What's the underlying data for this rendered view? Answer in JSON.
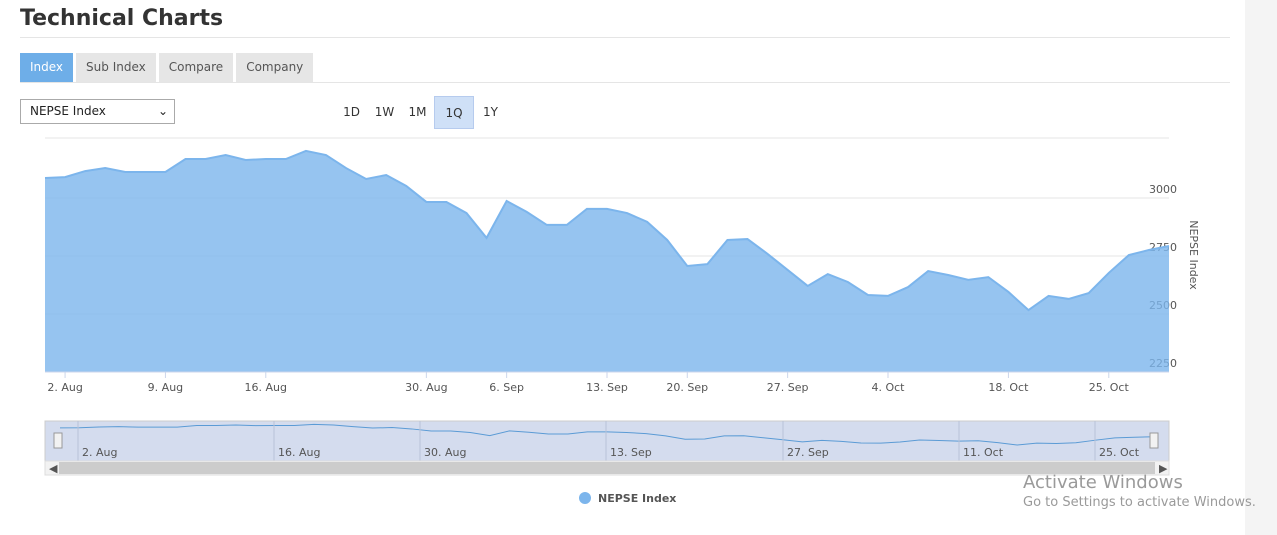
{
  "header": {
    "title": "Technical Charts"
  },
  "tabs": [
    "Index",
    "Sub Index",
    "Compare",
    "Company"
  ],
  "active_tab": 0,
  "select": "NEPSE Index",
  "ranges": [
    "1D",
    "1W",
    "1M",
    "1Q",
    "1Y"
  ],
  "active_range": 3,
  "chart_data": {
    "type": "area",
    "categories": [
      null,
      "2. Aug",
      null,
      null,
      null,
      null,
      "9. Aug",
      null,
      null,
      null,
      null,
      "16. Aug",
      null,
      null,
      null,
      null,
      null,
      null,
      null,
      "30. Aug",
      null,
      null,
      null,
      "6. Sep",
      null,
      null,
      null,
      null,
      "13. Sep",
      null,
      null,
      null,
      "20. Sep",
      null,
      null,
      null,
      null,
      "27. Sep",
      null,
      null,
      null,
      null,
      "4. Oct",
      null,
      null,
      null,
      null,
      null,
      "18. Oct",
      null,
      null,
      null,
      null,
      "25. Oct",
      null,
      null,
      null
    ],
    "series": [
      {
        "name": "NEPSE Index",
        "color": "#7cb5ec",
        "values": [
          3086,
          3090,
          3116,
          3129,
          3112,
          3112,
          3112,
          3168,
          3168,
          3185,
          3164,
          3168,
          3168,
          3203,
          3185,
          3129,
          3082,
          3099,
          3052,
          2983,
          2983,
          2935,
          2828,
          2987,
          2940,
          2884,
          2884,
          2953,
          2953,
          2935,
          2897,
          2819,
          2707,
          2715,
          2819,
          2823,
          2759,
          2690,
          2621,
          2672,
          2638,
          2582,
          2578,
          2616,
          2685,
          2668,
          2647,
          2659,
          2595,
          2517,
          2578,
          2565,
          2590,
          2677,
          2754,
          2776,
          2793
        ]
      }
    ],
    "ylim": [
      2250,
      3250
    ],
    "yticks": [
      2250,
      2500,
      2750,
      3000
    ],
    "y_label": "NEPSE Index",
    "grid": true,
    "navigator_labels": [
      "2. Aug",
      "16. Aug",
      "30. Aug",
      "13. Sep",
      "27. Sep",
      "11. Oct",
      "25. Oct"
    ]
  },
  "watermark": {
    "title": "Activate Windows",
    "subtitle": "Go to Settings to activate Windows."
  }
}
